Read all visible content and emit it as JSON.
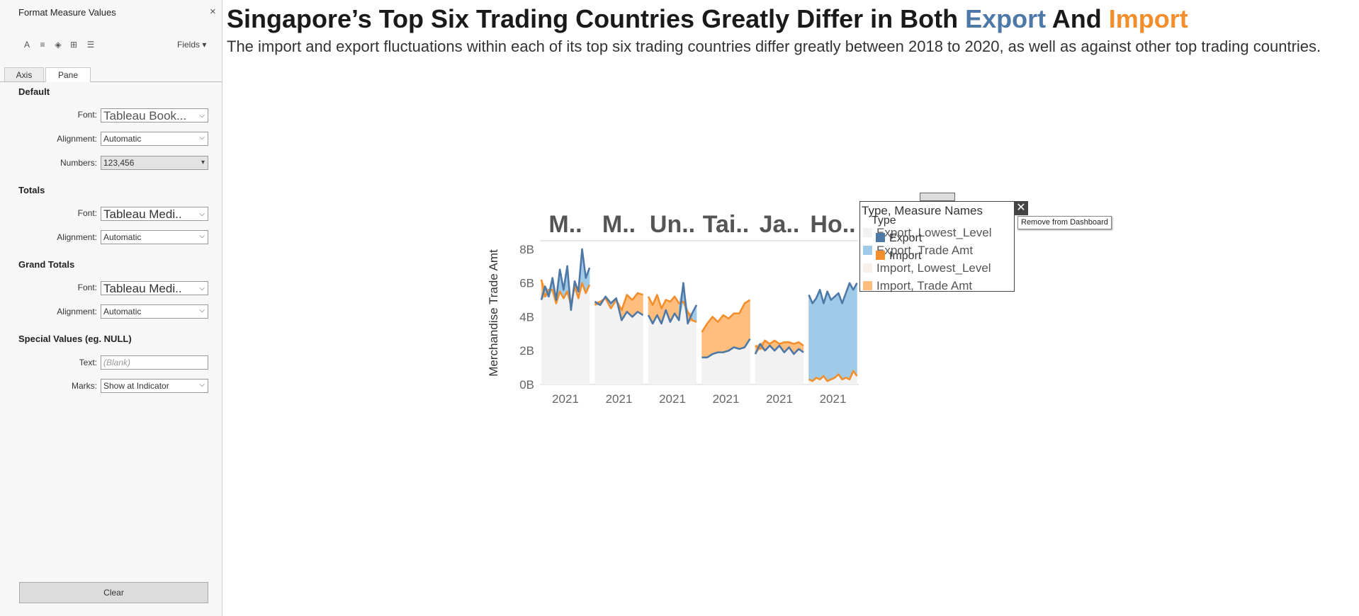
{
  "format_pane": {
    "title": "Format Measure Values",
    "close_glyph": "×",
    "fields_label": "Fields",
    "toolbar_icons": [
      "font-icon",
      "alignment-icon",
      "shading-icon",
      "borders-icon",
      "lines-icon"
    ],
    "tabs": [
      {
        "label": "Axis",
        "active": false
      },
      {
        "label": "Pane",
        "active": true
      }
    ],
    "sections": {
      "default": {
        "heading": "Default",
        "font_label": "Font:",
        "font_value": "Tableau Book...",
        "alignment_label": "Alignment:",
        "alignment_value": "Automatic",
        "numbers_label": "Numbers:",
        "numbers_value": "123,456"
      },
      "totals": {
        "heading": "Totals",
        "font_label": "Font:",
        "font_value": "Tableau Medi..",
        "alignment_label": "Alignment:",
        "alignment_value": "Automatic"
      },
      "grand_totals": {
        "heading": "Grand Totals",
        "font_label": "Font:",
        "font_value": "Tableau Medi..",
        "alignment_label": "Alignment:",
        "alignment_value": "Automatic"
      },
      "special_values": {
        "heading": "Special Values (eg. NULL)",
        "text_label": "Text:",
        "text_placeholder": "(Blank)",
        "marks_label": "Marks:",
        "marks_value": "Show at Indicator"
      }
    },
    "clear_label": "Clear"
  },
  "dashboard": {
    "title_part1": "Singapore’s Top Six Trading Countries Greatly Differ in Both ",
    "title_export": "Export",
    "title_and": " And ",
    "title_import": "Import",
    "subtitle": "The import and export fluctuations within each of its top six trading countries differ greatly between 2018 to 2020, as well as against other top trading countries."
  },
  "colors": {
    "export_line": "#4e79a7",
    "export_area": "#a0cbe8",
    "import_line": "#f28e2b",
    "import_area": "#ffbe7d",
    "lowest_level": "#f2f2f2",
    "title_export": "#4e79a7",
    "title_import": "#f28e2b"
  },
  "chart_data": {
    "type": "area",
    "ylabel": "Merchandise Trade Amt",
    "yticks": [
      "8B",
      "6B",
      "4B",
      "2B",
      "0B"
    ],
    "ylim": [
      0,
      8.5
    ],
    "panels": [
      {
        "header": "M..",
        "xtick": "2021",
        "export": [
          5.0,
          5.8,
          5.2,
          6.3,
          5.0,
          6.8,
          5.6,
          7.0,
          4.4,
          6.1,
          5.5,
          8.0,
          6.3,
          6.9
        ],
        "import": [
          6.2,
          5.2,
          5.6,
          5.6,
          4.8,
          5.5,
          5.1,
          5.5,
          4.7,
          5.8,
          5.1,
          6.0,
          5.4,
          5.9
        ]
      },
      {
        "header": "M..",
        "xtick": "2021",
        "export": [
          4.9,
          4.7,
          5.2,
          4.8,
          5.1,
          3.8,
          4.3,
          4.0,
          4.3,
          4.1
        ],
        "import": [
          4.7,
          4.9,
          5.1,
          4.5,
          5.0,
          4.4,
          5.3,
          5.0,
          5.4,
          5.3
        ]
      },
      {
        "header": "Un..",
        "xtick": "2021",
        "export": [
          4.1,
          3.6,
          4.1,
          3.6,
          4.4,
          3.7,
          4.2,
          3.8,
          6.0,
          3.6,
          4.2,
          4.7
        ],
        "import": [
          5.2,
          4.7,
          5.3,
          4.5,
          5.0,
          4.9,
          5.2,
          4.8,
          4.9,
          4.3,
          3.8,
          3.7
        ]
      },
      {
        "header": "Tai..",
        "xtick": "2021",
        "export": [
          1.6,
          1.6,
          1.8,
          1.9,
          1.9,
          2.0,
          2.2,
          2.1,
          2.2,
          2.7
        ],
        "import": [
          3.1,
          3.6,
          4.0,
          3.7,
          4.1,
          3.9,
          4.2,
          4.2,
          4.8,
          5.0
        ]
      },
      {
        "header": "Ja..",
        "xtick": "2021",
        "export": [
          1.8,
          2.4,
          2.0,
          2.3,
          2.0,
          2.3,
          1.9,
          2.2,
          1.8,
          2.1,
          1.9
        ],
        "import": [
          2.3,
          2.1,
          2.6,
          2.4,
          2.6,
          2.4,
          2.5,
          2.5,
          2.4,
          2.5,
          2.3
        ]
      },
      {
        "header": "Ho..",
        "xtick": "2021",
        "export": [
          5.3,
          4.8,
          5.1,
          5.6,
          4.8,
          5.5,
          5.0,
          5.2,
          5.4,
          4.8,
          5.4,
          6.0,
          5.6,
          6.0
        ],
        "import": [
          0.3,
          0.2,
          0.4,
          0.3,
          0.5,
          0.2,
          0.3,
          0.4,
          0.6,
          0.3,
          0.4,
          0.3,
          0.8,
          0.5
        ]
      }
    ]
  },
  "legend": {
    "title": "Type, Measure Names",
    "items": [
      {
        "label": "Export, Lowest_Level",
        "color": "#f2f2f2"
      },
      {
        "label": "Export, Trade Amt",
        "color": "#a0cbe8"
      },
      {
        "label": "Import, Lowest_Level",
        "color": "#f7f0ea"
      },
      {
        "label": "Import, Trade Amt",
        "color": "#ffbe7d"
      }
    ],
    "overlay_title": "Type",
    "overlay_items": [
      {
        "label": "Export",
        "color": "#4e79a7"
      },
      {
        "label": "Import",
        "color": "#f28e2b"
      }
    ],
    "close_glyph": "✕",
    "tooltip": "Remove from Dashboard"
  }
}
